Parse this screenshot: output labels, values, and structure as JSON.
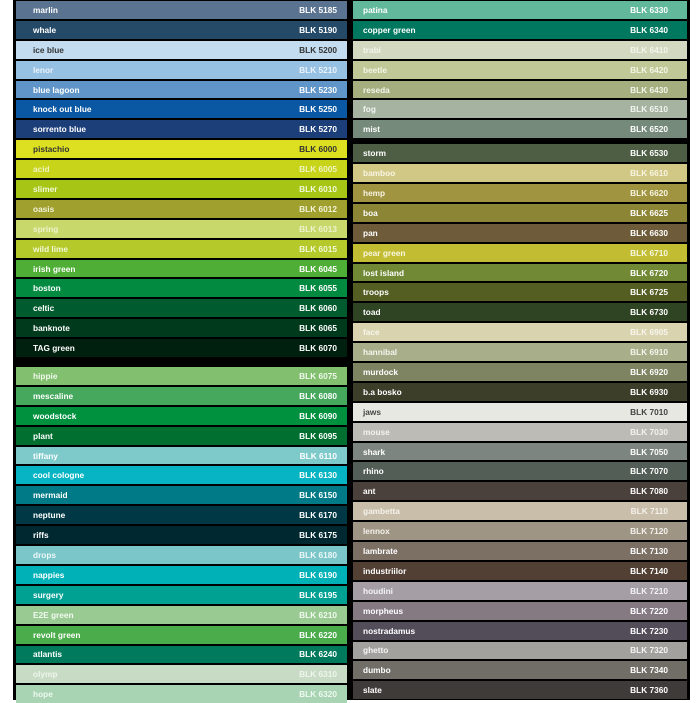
{
  "left_column": [
    [
      {
        "name": "marlin",
        "code": "BLK 5185",
        "color": "#5a7391",
        "text": "#ffffff"
      },
      {
        "name": "whale",
        "code": "BLK 5190",
        "color": "#254a68",
        "text": "#ffffff"
      },
      {
        "name": "ice blue",
        "code": "BLK 5200",
        "color": "#c3dcef",
        "text": "#333333"
      },
      {
        "name": "lenor",
        "code": "BLK 5210",
        "color": "#97c1e3",
        "text": "#eaf3fb"
      },
      {
        "name": "blue lagoon",
        "code": "BLK 5230",
        "color": "#5f95c8",
        "text": "#ffffff"
      },
      {
        "name": "knock out blue",
        "code": "BLK 5250",
        "color": "#0a58a3",
        "text": "#ffffff"
      },
      {
        "name": "sorrento blue",
        "code": "BLK 5270",
        "color": "#1c3f7a",
        "text": "#ffffff"
      },
      {
        "name": "pistachio",
        "code": "BLK 6000",
        "color": "#dde020",
        "text": "#333333"
      },
      {
        "name": "acid",
        "code": "BLK 6005",
        "color": "#c8d41a",
        "text": "#eef3c0"
      },
      {
        "name": "slimer",
        "code": "BLK 6010",
        "color": "#a7c515",
        "text": "#f3f8d8"
      },
      {
        "name": "oasis",
        "code": "BLK 6012",
        "color": "#9fa02e",
        "text": "#f3f3d8"
      },
      {
        "name": "spring",
        "code": "BLK 6013",
        "color": "#c9d86a",
        "text": "#eef3cc"
      },
      {
        "name": "wild lime",
        "code": "BLK 6015",
        "color": "#b5c92a",
        "text": "#f3f8d8"
      },
      {
        "name": "irish green",
        "code": "BLK 6045",
        "color": "#4fae35",
        "text": "#ffffff"
      },
      {
        "name": "boston",
        "code": "BLK 6055",
        "color": "#028a40",
        "text": "#ffffff"
      },
      {
        "name": "celtic",
        "code": "BLK 6060",
        "color": "#005c2e",
        "text": "#ffffff"
      },
      {
        "name": "banknote",
        "code": "BLK 6065",
        "color": "#003a1c",
        "text": "#ffffff"
      },
      {
        "name": "TAG green",
        "code": "BLK 6070",
        "color": "#00200f",
        "text": "#ffffff"
      }
    ],
    [
      {
        "name": "hippie",
        "code": "BLK 6075",
        "color": "#82c070",
        "text": "#f0f8ec"
      },
      {
        "name": "mescaline",
        "code": "BLK 6080",
        "color": "#45a85c",
        "text": "#ffffff"
      },
      {
        "name": "woodstock",
        "code": "BLK 6090",
        "color": "#00913f",
        "text": "#ffffff"
      },
      {
        "name": "plant",
        "code": "BLK 6095",
        "color": "#006f30",
        "text": "#ffffff"
      },
      {
        "name": "tiffany",
        "code": "BLK 6110",
        "color": "#7ec9ca",
        "text": "#ffffff"
      },
      {
        "name": "cool cologne",
        "code": "BLK 6130",
        "color": "#07b4c4",
        "text": "#ffffff"
      },
      {
        "name": "mermaid",
        "code": "BLK 6150",
        "color": "#007a86",
        "text": "#ffffff"
      },
      {
        "name": "neptune",
        "code": "BLK 6170",
        "color": "#003845",
        "text": "#ffffff"
      },
      {
        "name": "riffs",
        "code": "BLK 6175",
        "color": "#002830",
        "text": "#ffffff"
      },
      {
        "name": "drops",
        "code": "BLK 6180",
        "color": "#7bc6c8",
        "text": "#eef8f8"
      },
      {
        "name": "nappies",
        "code": "BLK 6190",
        "color": "#00b1b8",
        "text": "#ffffff"
      },
      {
        "name": "surgery",
        "code": "BLK 6195",
        "color": "#00a093",
        "text": "#ffffff"
      },
      {
        "name": "E2E green",
        "code": "BLK 6210",
        "color": "#99ca92",
        "text": "#f3faf1"
      },
      {
        "name": "revolt green",
        "code": "BLK 6220",
        "color": "#4aac4b",
        "text": "#ffffff"
      },
      {
        "name": "atlantis",
        "code": "BLK 6240",
        "color": "#007a5c",
        "text": "#ffffff"
      },
      {
        "name": "olymp",
        "code": "BLK 6310",
        "color": "#c8dcc5",
        "text": "#eef5ec"
      },
      {
        "name": "hope",
        "code": "BLK 6320",
        "color": "#a8d4b3",
        "text": "#eef8f0"
      }
    ]
  ],
  "right_column": [
    [
      {
        "name": "patina",
        "code": "BLK 6330",
        "color": "#62b89b",
        "text": "#ffffff"
      },
      {
        "name": "copper green",
        "code": "BLK 6340",
        "color": "#007860",
        "text": "#ffffff"
      },
      {
        "name": "trabi",
        "code": "BLK 6410",
        "color": "#d3d8c0",
        "text": "#f3f5ec"
      },
      {
        "name": "beetle",
        "code": "BLK 6420",
        "color": "#c1c897",
        "text": "#f3f5e6"
      },
      {
        "name": "reseda",
        "code": "BLK 6430",
        "color": "#a4ae7e",
        "text": "#f3f5ea"
      },
      {
        "name": "fog",
        "code": "BLK 6510",
        "color": "#a5b3a0",
        "text": "#f3f5f1"
      },
      {
        "name": "mist",
        "code": "BLK 6520",
        "color": "#758a7a",
        "text": "#ffffff"
      }
    ],
    [
      {
        "name": "storm",
        "code": "BLK 6530",
        "color": "#4d5e45",
        "text": "#ffffff"
      },
      {
        "name": "bamboo",
        "code": "BLK 6610",
        "color": "#d2c885",
        "text": "#f8f5e3"
      },
      {
        "name": "hemp",
        "code": "BLK 6620",
        "color": "#a19441",
        "text": "#f8f5e3"
      },
      {
        "name": "boa",
        "code": "BLK 6625",
        "color": "#8b8535",
        "text": "#ffffff"
      },
      {
        "name": "pan",
        "code": "BLK 6630",
        "color": "#6e5b3a",
        "text": "#ffffff"
      },
      {
        "name": "pear green",
        "code": "BLK 6710",
        "color": "#c2bc32",
        "text": "#f8f8e3"
      },
      {
        "name": "lost island",
        "code": "BLK 6720",
        "color": "#718935",
        "text": "#ffffff"
      },
      {
        "name": "troops",
        "code": "BLK 6725",
        "color": "#555e22",
        "text": "#ffffff"
      },
      {
        "name": "toad",
        "code": "BLK 6730",
        "color": "#2f4423",
        "text": "#ffffff"
      },
      {
        "name": "face",
        "code": "BLK 6905",
        "color": "#d9d3b0",
        "text": "#f8f6ec"
      },
      {
        "name": "hannibal",
        "code": "BLK 6910",
        "color": "#a9ae8a",
        "text": "#f5f6ee"
      },
      {
        "name": "murdock",
        "code": "BLK 6920",
        "color": "#7e8362",
        "text": "#ffffff"
      },
      {
        "name": "b.a bosko",
        "code": "BLK 6930",
        "color": "#3d3e2a",
        "text": "#ffffff"
      },
      {
        "name": "jaws",
        "code": "BLK 7010",
        "color": "#e8e8e2",
        "text": "#444444"
      },
      {
        "name": "mouse",
        "code": "BLK 7030",
        "color": "#bdbbb5",
        "text": "#f3f3f1"
      },
      {
        "name": "shark",
        "code": "BLK 7050",
        "color": "#7d8580",
        "text": "#ffffff"
      },
      {
        "name": "rhino",
        "code": "BLK 7070",
        "color": "#535e56",
        "text": "#ffffff"
      },
      {
        "name": "ant",
        "code": "BLK 7080",
        "color": "#4a403c",
        "text": "#ffffff"
      },
      {
        "name": "gambetta",
        "code": "BLK 7110",
        "color": "#c8bea9",
        "text": "#f5f2ec"
      },
      {
        "name": "lennox",
        "code": "BLK 7120",
        "color": "#9e9585",
        "text": "#f5f2ec"
      },
      {
        "name": "lambrate",
        "code": "BLK 7130",
        "color": "#7c7065",
        "text": "#ffffff"
      },
      {
        "name": "industriilor",
        "code": "BLK 7140",
        "color": "#524035",
        "text": "#ffffff"
      },
      {
        "name": "houdini",
        "code": "BLK 7210",
        "color": "#a59fa5",
        "text": "#f5f3f5"
      },
      {
        "name": "morpheus",
        "code": "BLK 7220",
        "color": "#857a82",
        "text": "#ffffff"
      },
      {
        "name": "nostradamus",
        "code": "BLK 7230",
        "color": "#534d5a",
        "text": "#ffffff"
      },
      {
        "name": "ghetto",
        "code": "BLK 7320",
        "color": "#a2a19d",
        "text": "#f5f5f3"
      },
      {
        "name": "dumbo",
        "code": "BLK 7340",
        "color": "#706e66",
        "text": "#ffffff"
      },
      {
        "name": "slate",
        "code": "BLK 7360",
        "color": "#3f3b38",
        "text": "#ffffff"
      }
    ]
  ]
}
